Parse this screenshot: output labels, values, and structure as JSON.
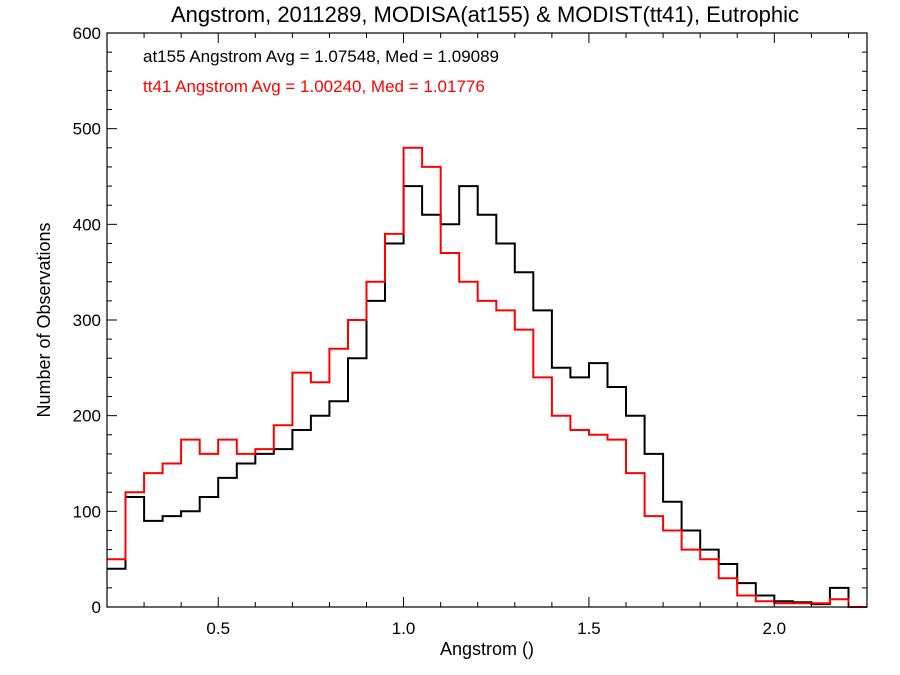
{
  "chart_data": {
    "type": "line",
    "title": "Angstrom, 2011289, MODISA(at155) & MODIST(tt41), Eutrophic",
    "xlabel": "Angstrom ()",
    "ylabel": "Number of Observations",
    "xlim": [
      0.2,
      2.25
    ],
    "ylim": [
      0,
      600
    ],
    "x_ticks": [
      0.5,
      1.0,
      1.5,
      2.0
    ],
    "x_tick_labels": [
      "0.5",
      "1.0",
      "1.5",
      "2.0"
    ],
    "y_ticks": [
      0,
      100,
      200,
      300,
      400,
      500,
      600
    ],
    "y_tick_labels": [
      "0",
      "100",
      "200",
      "300",
      "400",
      "500",
      "600"
    ],
    "grid": false,
    "annotations": [
      {
        "text": "at155 Angstrom Avg = 1.07548, Med = 1.09089",
        "color": "#000000"
      },
      {
        "text": "tt41 Angstrom Avg = 1.00240, Med = 1.01776",
        "color": "#ff0000"
      }
    ],
    "series": [
      {
        "color": "#000000",
        "x": [
          0.2,
          0.25,
          0.3,
          0.35,
          0.4,
          0.45,
          0.5,
          0.55,
          0.6,
          0.65,
          0.7,
          0.75,
          0.8,
          0.85,
          0.9,
          0.95,
          1.0,
          1.05,
          1.1,
          1.15,
          1.2,
          1.25,
          1.3,
          1.35,
          1.4,
          1.45,
          1.5,
          1.55,
          1.6,
          1.65,
          1.7,
          1.75,
          1.8,
          1.85,
          1.9,
          1.95,
          2.0,
          2.05,
          2.1,
          2.15,
          2.2,
          2.25
        ],
        "values": [
          40,
          115,
          90,
          95,
          100,
          115,
          135,
          150,
          160,
          165,
          185,
          200,
          215,
          260,
          320,
          380,
          440,
          410,
          400,
          440,
          410,
          380,
          350,
          310,
          250,
          240,
          255,
          230,
          200,
          160,
          110,
          80,
          60,
          45,
          25,
          12,
          6,
          5,
          3,
          20,
          0,
          0
        ]
      },
      {
        "color": "#ff0000",
        "x": [
          0.2,
          0.25,
          0.3,
          0.35,
          0.4,
          0.45,
          0.5,
          0.55,
          0.6,
          0.65,
          0.7,
          0.75,
          0.8,
          0.85,
          0.9,
          0.95,
          1.0,
          1.05,
          1.1,
          1.15,
          1.2,
          1.25,
          1.3,
          1.35,
          1.4,
          1.45,
          1.5,
          1.55,
          1.6,
          1.65,
          1.7,
          1.75,
          1.8,
          1.85,
          1.9,
          1.95,
          2.0,
          2.05,
          2.1,
          2.15,
          2.2,
          2.25
        ],
        "values": [
          50,
          120,
          140,
          150,
          175,
          160,
          175,
          160,
          165,
          190,
          245,
          235,
          270,
          300,
          340,
          390,
          480,
          460,
          370,
          340,
          320,
          310,
          290,
          240,
          200,
          185,
          180,
          175,
          140,
          95,
          80,
          60,
          50,
          30,
          12,
          6,
          4,
          4,
          4,
          8,
          0,
          0
        ]
      }
    ]
  }
}
